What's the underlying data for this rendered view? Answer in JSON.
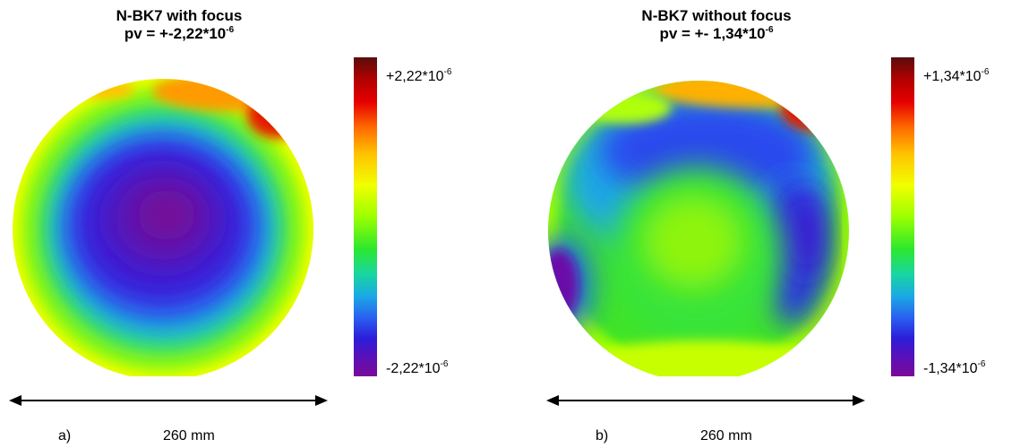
{
  "chart_data": [
    {
      "type": "heatmap",
      "panel": "a)",
      "title": "N-BK7 with focus",
      "subtitle": "pv = +-2,22*10",
      "subtitle_exp": "-6",
      "colorbar": {
        "max_label": "+2,22*10",
        "max_exp": "-6",
        "min_label": "-2,22*10",
        "min_exp": "-6",
        "max_value": 2.22e-06,
        "min_value": -2.22e-06
      },
      "dimension": "260 mm",
      "pattern": "concave bowl: deep violet/blue centre rising through cyan and green to yellow at the rim, red at the top edge"
    },
    {
      "type": "heatmap",
      "panel": "b)",
      "title": "N-BK7 without focus",
      "subtitle": "pv = +- 1,34*10",
      "subtitle_exp": "-6",
      "colorbar": {
        "max_label": "+1,34*10",
        "max_exp": "-6",
        "min_label": "-1,34*10",
        "min_exp": "-6",
        "max_value": 1.34e-06,
        "min_value": -1.34e-06
      },
      "dimension": "260 mm",
      "pattern": "green centre, blue crescents toward top and right, violet spot at left edge, yellow-red rim at top"
    }
  ],
  "colors": {
    "scale": [
      "#5a0d0d",
      "#b30000",
      "#e60000",
      "#ff6a00",
      "#ffc000",
      "#f2ff00",
      "#9cff00",
      "#2de82d",
      "#18d6a0",
      "#1aa8e6",
      "#2a5cf0",
      "#2b1ed9",
      "#5a10b8",
      "#7a0a9a"
    ]
  }
}
